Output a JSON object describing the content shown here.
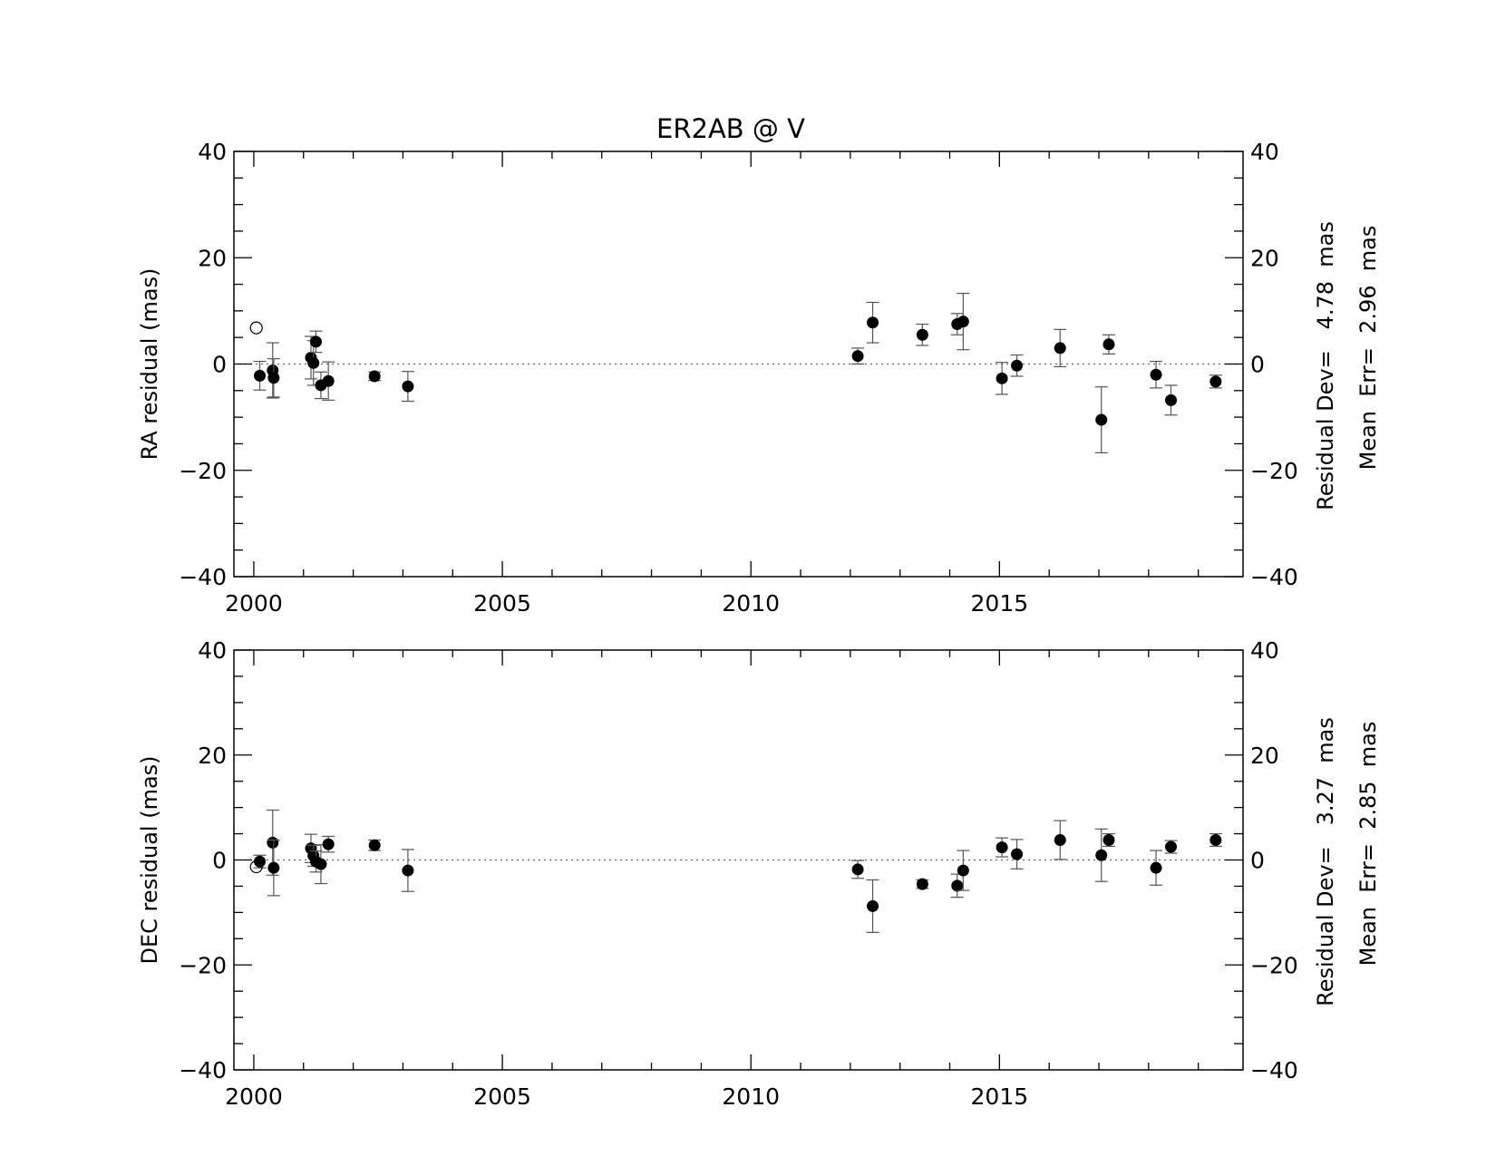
{
  "title": "ER2AB @ V",
  "chart_data": [
    {
      "type": "scatter",
      "title": "ER2AB @ V",
      "xlabel": "",
      "ylabel": "RA residual (mas)",
      "xlim": [
        1999.6,
        2019.9
      ],
      "ylim": [
        -40,
        40
      ],
      "xticks": [
        2000,
        2005,
        2010,
        2015
      ],
      "xtick_labels": [
        "2000",
        "2005",
        "2010",
        "2015"
      ],
      "yticks": [
        -40,
        -20,
        0,
        20,
        40
      ],
      "ytick_labels": [
        "−40",
        "−20",
        "0",
        "20",
        "40"
      ],
      "zero_line": "dotted",
      "stats": [
        "Residual Dev=   4.78  mas",
        "Mean  Err=  2.96  mas"
      ],
      "series": [
        {
          "marker": "filled-circle",
          "x": [
            2000.12,
            2000.38,
            2000.4,
            2001.15,
            2001.2,
            2001.25,
            2001.35,
            2001.5,
            2002.43,
            2003.1,
            2012.15,
            2012.45,
            2013.45,
            2014.15,
            2014.27,
            2015.05,
            2015.35,
            2016.22,
            2017.05,
            2017.2,
            2018.15,
            2018.45,
            2019.35
          ],
          "y": [
            -2.2,
            -1.2,
            -2.6,
            1.2,
            0.2,
            4.2,
            -4.0,
            -3.2,
            -2.3,
            -4.2,
            1.5,
            7.8,
            5.5,
            7.5,
            8.0,
            -2.7,
            -0.3,
            3.0,
            -10.5,
            3.7,
            -2.0,
            -6.8,
            -3.3
          ],
          "yerr": [
            2.7,
            5.2,
            3.6,
            4.0,
            4.2,
            2.0,
            2.5,
            3.6,
            0.8,
            2.8,
            1.5,
            3.8,
            2.0,
            2.0,
            5.3,
            3.0,
            2.0,
            3.5,
            6.2,
            1.8,
            2.5,
            2.8,
            1.2
          ]
        },
        {
          "marker": "open-circle",
          "x": [
            2000.05
          ],
          "y": [
            6.8
          ]
        }
      ]
    },
    {
      "type": "scatter",
      "xlabel": "",
      "ylabel": "DEC residual (mas)",
      "xlim": [
        1999.6,
        2019.9
      ],
      "ylim": [
        -40,
        40
      ],
      "xticks": [
        2000,
        2005,
        2010,
        2015
      ],
      "xtick_labels": [
        "2000",
        "2005",
        "2010",
        "2015"
      ],
      "yticks": [
        -40,
        -20,
        0,
        20,
        40
      ],
      "ytick_labels": [
        "−40",
        "−20",
        "0",
        "20",
        "40"
      ],
      "zero_line": "dotted",
      "stats": [
        "Residual Dev=   3.27  mas",
        "Mean  Err=  2.85  mas"
      ],
      "series": [
        {
          "marker": "filled-circle",
          "x": [
            2000.12,
            2000.38,
            2000.4,
            2001.15,
            2001.2,
            2001.25,
            2001.35,
            2001.5,
            2002.43,
            2003.1,
            2012.15,
            2012.45,
            2013.45,
            2014.15,
            2014.27,
            2015.05,
            2015.35,
            2016.22,
            2017.05,
            2017.2,
            2018.15,
            2018.45,
            2019.35
          ],
          "y": [
            -0.3,
            3.3,
            -1.5,
            2.2,
            0.8,
            -0.3,
            -0.8,
            3.0,
            2.8,
            -2.0,
            -1.8,
            -8.8,
            -4.6,
            -4.9,
            -2.0,
            2.4,
            1.1,
            3.8,
            0.9,
            3.8,
            -1.5,
            2.5,
            3.8
          ],
          "yerr": [
            1.2,
            6.2,
            5.3,
            2.7,
            2.0,
            2.0,
            3.7,
            1.5,
            1.0,
            4.0,
            1.7,
            5.0,
            0.8,
            2.2,
            3.8,
            1.8,
            2.8,
            3.7,
            5.0,
            1.2,
            3.3,
            1.2,
            1.2
          ]
        },
        {
          "marker": "open-circle",
          "x": [
            2000.05
          ],
          "y": [
            -1.3
          ]
        }
      ]
    }
  ]
}
